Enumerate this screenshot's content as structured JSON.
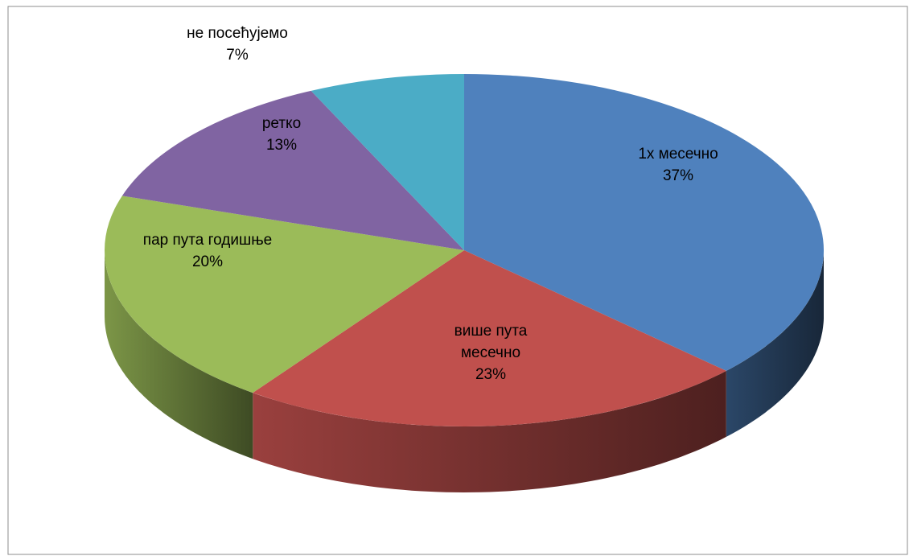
{
  "chart_data": {
    "type": "pie",
    "categories": [
      "1x месечно",
      "више пута месечно",
      "пар пута годишње",
      "ретко",
      "не посећујемо"
    ],
    "values": [
      37,
      23,
      20,
      13,
      7
    ],
    "value_labels": [
      "37%",
      "23%",
      "20%",
      "13%",
      "7%"
    ],
    "colors": [
      "#4f81bd",
      "#c0504d",
      "#9bbb59",
      "#8064a2",
      "#4bacc6"
    ]
  }
}
